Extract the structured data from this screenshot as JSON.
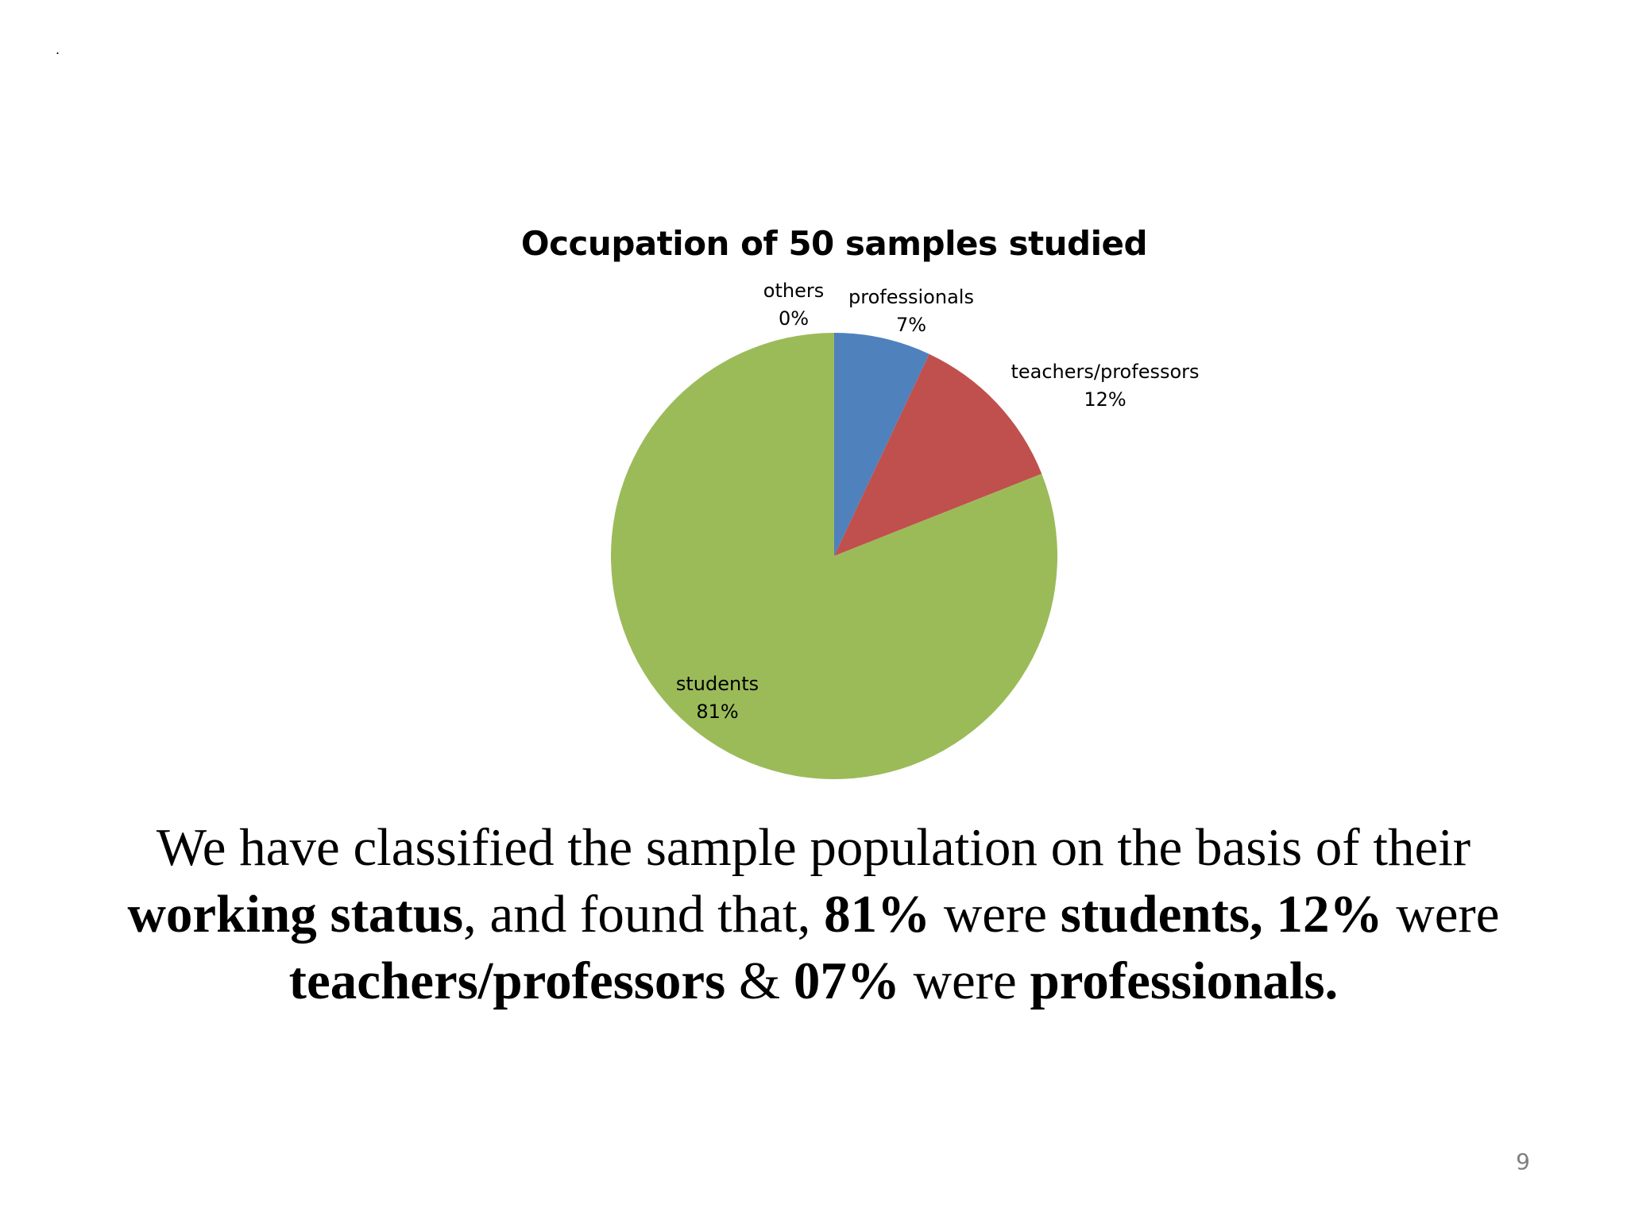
{
  "slide": {
    "corner_mark": ".",
    "page_number": "9",
    "body": {
      "line1": "We have classified the sample population on the basis of their",
      "line2_a": "working status",
      "line2_b": ", and found that, ",
      "line2_c": "81%",
      "line2_d": " were ",
      "line2_e": "students, 12%",
      "line2_f": " were",
      "line3_a": "teachers/professors",
      "line3_b": " & ",
      "line3_c": "07%",
      "line3_d": " were ",
      "line3_e": "professionals."
    }
  },
  "chart_data": {
    "type": "pie",
    "title": "Occupation of 50 samples studied",
    "start_angle_deg": 0,
    "direction": "clockwise",
    "slices": [
      {
        "label": "professionals",
        "value": 7,
        "display": "7%",
        "color": "#4f81bd"
      },
      {
        "label": "teachers/professors",
        "value": 12,
        "display": "12%",
        "color": "#c0504d"
      },
      {
        "label": "students",
        "value": 81,
        "display": "81%",
        "color": "#9bbb59"
      },
      {
        "label": "others",
        "value": 0,
        "display": "0%",
        "color": "#8064a2"
      }
    ]
  }
}
